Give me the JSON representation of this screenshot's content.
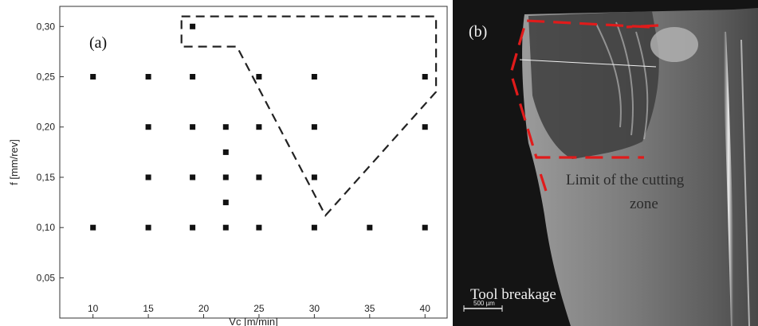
{
  "chart_data": {
    "type": "scatter",
    "panel_label": "(a)",
    "xlabel": "Vc [m/min]",
    "ylabel": "f [mm/rev]",
    "xlim": [
      7,
      42
    ],
    "ylim": [
      0.01,
      0.32
    ],
    "x_ticks": [
      10,
      15,
      20,
      25,
      30,
      35,
      40
    ],
    "x_tick_labels": [
      "10",
      "15",
      "20",
      "25",
      "30",
      "35",
      "40"
    ],
    "y_ticks": [
      0.05,
      0.1,
      0.15,
      0.2,
      0.25,
      0.3
    ],
    "y_tick_labels": [
      "0,05",
      "0,10",
      "0,15",
      "0,20",
      "0,25",
      "0,30"
    ],
    "points": [
      {
        "x": 10,
        "y": 0.25
      },
      {
        "x": 15,
        "y": 0.25
      },
      {
        "x": 19,
        "y": 0.25
      },
      {
        "x": 25,
        "y": 0.25
      },
      {
        "x": 30,
        "y": 0.25
      },
      {
        "x": 40,
        "y": 0.25
      },
      {
        "x": 15,
        "y": 0.2
      },
      {
        "x": 19,
        "y": 0.2
      },
      {
        "x": 22,
        "y": 0.2
      },
      {
        "x": 25,
        "y": 0.2
      },
      {
        "x": 30,
        "y": 0.2
      },
      {
        "x": 40,
        "y": 0.2
      },
      {
        "x": 22,
        "y": 0.175
      },
      {
        "x": 15,
        "y": 0.15
      },
      {
        "x": 19,
        "y": 0.15
      },
      {
        "x": 22,
        "y": 0.15
      },
      {
        "x": 25,
        "y": 0.15
      },
      {
        "x": 30,
        "y": 0.15
      },
      {
        "x": 22,
        "y": 0.125
      },
      {
        "x": 10,
        "y": 0.1
      },
      {
        "x": 15,
        "y": 0.1
      },
      {
        "x": 19,
        "y": 0.1
      },
      {
        "x": 22,
        "y": 0.1
      },
      {
        "x": 25,
        "y": 0.1
      },
      {
        "x": 30,
        "y": 0.1
      },
      {
        "x": 35,
        "y": 0.1
      },
      {
        "x": 40,
        "y": 0.1
      },
      {
        "x": 19,
        "y": 0.3
      }
    ],
    "region_outline": [
      {
        "x": 18,
        "y": 0.31
      },
      {
        "x": 41,
        "y": 0.31
      },
      {
        "x": 41,
        "y": 0.235
      },
      {
        "x": 31,
        "y": 0.112
      },
      {
        "x": 23,
        "y": 0.28
      },
      {
        "x": 18,
        "y": 0.28
      }
    ],
    "grid": false,
    "legend": "none"
  },
  "photo": {
    "panel_label": "(b)",
    "cutting_zone_label_line1": "Limit of the cutting",
    "cutting_zone_label_line2": "zone",
    "breakage_label": "Tool breakage",
    "scale_bar_label": "500 µm",
    "outline_color": "#e01b1b"
  }
}
